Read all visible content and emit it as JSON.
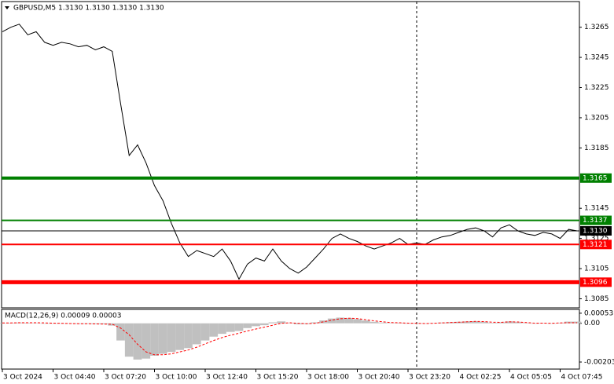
{
  "chart_data": [
    {
      "type": "line",
      "title": "GBPUSD,M5  1.3130 1.3130 1.3130 1.3130",
      "color": "#000000",
      "categories": [
        "3 Oct 2024",
        null,
        null,
        null,
        null,
        null,
        "3 Oct 04:40",
        null,
        null,
        null,
        null,
        null,
        "3 Oct 07:20",
        null,
        null,
        null,
        null,
        null,
        "3 Oct 10:00",
        null,
        null,
        null,
        null,
        null,
        "3 Oct 12:40",
        null,
        null,
        null,
        null,
        null,
        "3 Oct 15:20",
        null,
        null,
        null,
        null,
        null,
        "3 Oct 18:00",
        null,
        null,
        null,
        null,
        null,
        "3 Oct 20:40",
        null,
        null,
        null,
        null,
        null,
        "3 Oct 23:20",
        null,
        null,
        null,
        null,
        null,
        "4 Oct 02:25",
        null,
        null,
        null,
        null,
        null,
        "4 Oct 05:05",
        null,
        null,
        null,
        null,
        null,
        "4 Oct 07:45",
        null,
        null
      ],
      "values": [
        1.3262,
        1.3265,
        1.3267,
        1.326,
        1.3262,
        1.3255,
        1.3253,
        1.3255,
        1.3254,
        1.3252,
        1.3253,
        1.325,
        1.3252,
        1.3249,
        1.3214,
        1.318,
        1.3187,
        1.3175,
        1.316,
        1.315,
        1.3135,
        1.3122,
        1.3113,
        1.3117,
        1.3115,
        1.3113,
        1.3118,
        1.311,
        1.3098,
        1.3108,
        1.3112,
        1.311,
        1.3118,
        1.311,
        1.3105,
        1.3102,
        1.3106,
        1.3112,
        1.3118,
        1.3125,
        1.3128,
        1.3125,
        1.3123,
        1.312,
        1.3118,
        1.312,
        1.3122,
        1.3125,
        1.3121,
        1.3122,
        1.3121,
        1.3124,
        1.3126,
        1.3127,
        1.3129,
        1.3131,
        1.3132,
        1.313,
        1.3126,
        1.3132,
        1.3134,
        1.313,
        1.3128,
        1.3127,
        1.3129,
        1.3128,
        1.3125,
        1.3131,
        1.313
      ],
      "ylim": [
        1.3079,
        1.3282
      ],
      "yticks": [
        1.3265,
        1.3245,
        1.3225,
        1.3205,
        1.3185,
        1.3145,
        1.3125,
        1.3105,
        1.3085
      ],
      "levels": [
        {
          "value": 1.3165,
          "color": "#008000",
          "width": 4
        },
        {
          "value": 1.3137,
          "color": "#008000",
          "width": 2
        },
        {
          "value": 1.313,
          "label": "1.3130",
          "color": "#000000",
          "width": 1
        },
        {
          "value": 1.3121,
          "color": "#ff0000",
          "width": 2
        },
        {
          "value": 1.3096,
          "color": "#ff0000",
          "width": 5
        }
      ]
    },
    {
      "type": "macd",
      "title": "MACD(12,26,9) 0.00009 0.00003",
      "color": "#c0c0c0",
      "signal_color": "#ff0000",
      "values": [
        2e-05,
        3e-05,
        4e-05,
        3e-05,
        2e-05,
        0,
        -1e-05,
        -2e-05,
        -2e-05,
        -3e-05,
        -3e-05,
        -4e-05,
        -5e-05,
        -0.00012,
        -0.0009,
        -0.00175,
        -0.0019,
        -0.00185,
        -0.0017,
        -0.0016,
        -0.0015,
        -0.0014,
        -0.0013,
        -0.0011,
        -0.0009,
        -0.0007,
        -0.00055,
        -0.00045,
        -0.0004,
        -0.00025,
        -0.00015,
        -0.0001,
        5e-05,
        0.0001,
        2e-05,
        -5e-05,
        -4e-05,
        5e-05,
        0.00015,
        0.00025,
        0.0003,
        0.00028,
        0.00022,
        0.00015,
        8e-05,
        4e-05,
        2e-05,
        3e-05,
        0,
        -1e-05,
        -2e-05,
        1e-05,
        4e-05,
        6e-05,
        8e-05,
        0.0001,
        0.00011,
        8e-05,
        3e-05,
        5e-05,
        0.0001,
        6e-05,
        2e-05,
        -1e-05,
        1e-05,
        0,
        3e-05,
        9e-05,
        9e-05
      ],
      "signal": [
        2e-05,
        2e-05,
        3e-05,
        3e-05,
        3e-05,
        2e-05,
        1e-05,
        0,
        -1e-05,
        -2e-05,
        -2e-05,
        -3e-05,
        -4e-05,
        -5e-05,
        -0.00025,
        -0.0006,
        -0.0011,
        -0.0015,
        -0.00165,
        -0.00165,
        -0.0016,
        -0.0015,
        -0.0014,
        -0.00125,
        -0.00108,
        -0.0009,
        -0.00075,
        -0.00062,
        -0.00052,
        -0.0004,
        -0.0003,
        -0.0002,
        -0.0001,
        0,
        3e-05,
        0,
        -2e-05,
        0,
        8e-05,
        0.00017,
        0.00024,
        0.00027,
        0.00025,
        0.00019,
        0.00013,
        8e-05,
        4e-05,
        3e-05,
        1e-05,
        0,
        -1e-05,
        0,
        2e-05,
        4e-05,
        6e-05,
        8e-05,
        0.0001,
        9e-05,
        6e-05,
        5e-05,
        8e-05,
        7e-05,
        4e-05,
        1e-05,
        1e-05,
        0,
        2e-05,
        3e-05,
        3e-05
      ],
      "ylim": [
        -0.0024,
        0.00073
      ],
      "yticks": [
        0.00053,
        {
          "value": 0,
          "label": "0.00"
        },
        -0.00203
      ]
    }
  ]
}
